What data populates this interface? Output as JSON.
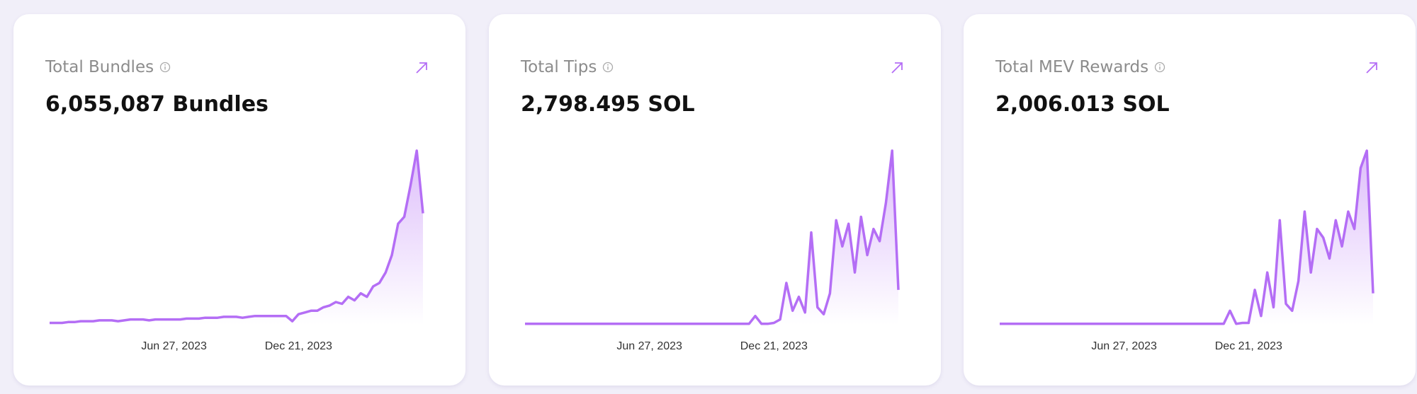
{
  "cards": [
    {
      "title": "Total Bundles",
      "value": "6,055,087 Bundles",
      "chart": {
        "type": "area",
        "color": "#b46ef5",
        "ylim": [
          0,
          100
        ],
        "categories": [
          null,
          null,
          null,
          null,
          null,
          null,
          null,
          null,
          null,
          null,
          null,
          null,
          null,
          null,
          null,
          null,
          null,
          null,
          null,
          null,
          "Jun 27, 2023",
          null,
          null,
          null,
          null,
          null,
          null,
          null,
          null,
          null,
          null,
          null,
          null,
          null,
          null,
          null,
          null,
          null,
          null,
          null,
          "Dec 21, 2023",
          null,
          null,
          null,
          null,
          null,
          null,
          null,
          null,
          null,
          null,
          null,
          null,
          null,
          null,
          null,
          null,
          null,
          null,
          null,
          null
        ],
        "values": [
          1,
          1,
          1,
          1.5,
          1.5,
          2,
          2,
          2,
          2.5,
          2.5,
          2.5,
          2,
          2.5,
          3,
          3,
          3,
          2.5,
          3,
          3,
          3,
          3,
          3,
          3.5,
          3.5,
          3.5,
          4,
          4,
          4,
          4.5,
          4.5,
          4.5,
          4,
          4.5,
          5,
          5,
          5,
          5,
          5,
          5,
          2,
          6,
          7,
          8,
          8,
          10,
          11,
          13,
          12,
          16,
          14,
          18,
          16,
          22,
          24,
          30,
          40,
          58,
          62,
          80,
          100,
          64
        ]
      }
    },
    {
      "title": "Total Tips",
      "value": "2,798.495 SOL",
      "chart": {
        "type": "area",
        "color": "#b46ef5",
        "ylim": [
          0,
          100
        ],
        "categories": [
          null,
          null,
          null,
          null,
          null,
          null,
          null,
          null,
          null,
          null,
          null,
          null,
          null,
          null,
          null,
          null,
          null,
          null,
          null,
          null,
          "Jun 27, 2023",
          null,
          null,
          null,
          null,
          null,
          null,
          null,
          null,
          null,
          null,
          null,
          null,
          null,
          null,
          null,
          null,
          null,
          null,
          null,
          "Dec 21, 2023",
          null,
          null,
          null,
          null,
          null,
          null,
          null,
          null,
          null,
          null,
          null,
          null,
          null,
          null,
          null,
          null,
          null,
          null,
          null,
          null
        ],
        "values": [
          0.5,
          0.5,
          0.5,
          0.5,
          0.5,
          0.5,
          0.5,
          0.5,
          0.5,
          0.5,
          0.5,
          0.5,
          0.5,
          0.5,
          0.5,
          0.5,
          0.5,
          0.5,
          0.5,
          0.5,
          0.5,
          0.5,
          0.5,
          0.5,
          0.5,
          0.5,
          0.5,
          0.5,
          0.5,
          0.5,
          0.5,
          0.5,
          0.5,
          0.5,
          0.5,
          0.5,
          0.5,
          5,
          0.5,
          0.5,
          1,
          3,
          24,
          8,
          16,
          7,
          53,
          10,
          6,
          18,
          60,
          45,
          58,
          30,
          62,
          40,
          55,
          48,
          70,
          100,
          20
        ]
      }
    },
    {
      "title": "Total MEV Rewards",
      "value": "2,006.013 SOL",
      "chart": {
        "type": "area",
        "color": "#b46ef5",
        "ylim": [
          0,
          100
        ],
        "categories": [
          null,
          null,
          null,
          null,
          null,
          null,
          null,
          null,
          null,
          null,
          null,
          null,
          null,
          null,
          null,
          null,
          null,
          null,
          null,
          null,
          "Jun 27, 2023",
          null,
          null,
          null,
          null,
          null,
          null,
          null,
          null,
          null,
          null,
          null,
          null,
          null,
          null,
          null,
          null,
          null,
          null,
          null,
          "Dec 21, 2023",
          null,
          null,
          null,
          null,
          null,
          null,
          null,
          null,
          null,
          null,
          null,
          null,
          null,
          null,
          null,
          null,
          null,
          null,
          null,
          null
        ],
        "values": [
          0.5,
          0.5,
          0.5,
          0.5,
          0.5,
          0.5,
          0.5,
          0.5,
          0.5,
          0.5,
          0.5,
          0.5,
          0.5,
          0.5,
          0.5,
          0.5,
          0.5,
          0.5,
          0.5,
          0.5,
          0.5,
          0.5,
          0.5,
          0.5,
          0.5,
          0.5,
          0.5,
          0.5,
          0.5,
          0.5,
          0.5,
          0.5,
          0.5,
          0.5,
          0.5,
          0.5,
          0.5,
          8,
          0.5,
          1,
          1,
          20,
          5,
          30,
          10,
          60,
          12,
          8,
          25,
          65,
          30,
          55,
          50,
          38,
          60,
          45,
          65,
          55,
          90,
          100,
          18
        ]
      }
    }
  ]
}
